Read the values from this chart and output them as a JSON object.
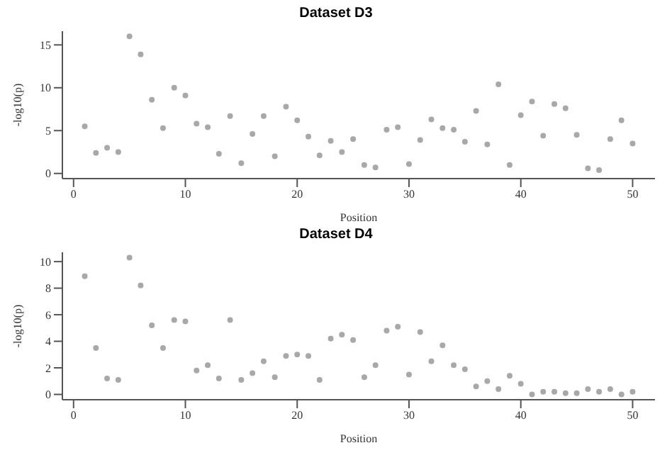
{
  "chart_data": [
    {
      "type": "scatter",
      "title": "Dataset D3",
      "xlabel": "Position",
      "ylabel": "-log10(p)",
      "marker": "circle",
      "grid": false,
      "legend": false,
      "x": [
        1,
        2,
        3,
        4,
        5,
        6,
        7,
        8,
        9,
        10,
        11,
        12,
        13,
        14,
        15,
        16,
        17,
        18,
        19,
        20,
        21,
        22,
        23,
        24,
        25,
        26,
        27,
        28,
        29,
        30,
        31,
        32,
        33,
        34,
        35,
        36,
        37,
        38,
        39,
        40,
        41,
        42,
        43,
        44,
        45,
        46,
        47,
        48,
        49,
        50
      ],
      "series": [
        {
          "color": "#a8a8a8",
          "values": [
            5.5,
            2.4,
            3.0,
            2.5,
            16.0,
            13.9,
            8.6,
            5.3,
            10.0,
            9.1,
            5.8,
            5.4,
            2.3,
            6.7,
            1.2,
            4.6,
            6.7,
            2.0,
            7.8,
            6.2,
            4.3,
            2.1,
            3.8,
            2.5,
            4.0,
            1.0,
            0.7,
            5.1,
            5.4,
            1.1,
            3.9,
            6.3,
            5.3,
            5.1,
            3.7,
            7.3,
            3.4,
            10.4,
            1.0,
            6.8,
            8.4,
            4.4,
            8.1,
            7.6,
            4.5,
            0.6,
            0.4,
            4.0,
            6.2,
            3.5
          ]
        }
      ],
      "xlim": [
        -1,
        52
      ],
      "xticks": [
        0,
        10,
        20,
        30,
        40,
        50
      ],
      "ylim": [
        -0.6,
        16.6
      ],
      "yticks": [
        0,
        5,
        10,
        15
      ]
    },
    {
      "type": "scatter",
      "title": "Dataset D4",
      "xlabel": "Position",
      "ylabel": "-log10(p)",
      "marker": "circle",
      "grid": false,
      "legend": false,
      "x": [
        1,
        2,
        3,
        4,
        5,
        6,
        7,
        8,
        9,
        10,
        11,
        12,
        13,
        14,
        15,
        16,
        17,
        18,
        19,
        20,
        21,
        22,
        23,
        24,
        25,
        26,
        27,
        28,
        29,
        30,
        31,
        32,
        33,
        34,
        35,
        36,
        37,
        38,
        39,
        40,
        41,
        42,
        43,
        44,
        45,
        46,
        47,
        48,
        49,
        50
      ],
      "series": [
        {
          "color": "#a8a8a8",
          "values": [
            8.9,
            3.5,
            1.2,
            1.1,
            10.3,
            8.2,
            5.2,
            3.5,
            5.6,
            5.5,
            1.8,
            2.2,
            1.2,
            5.6,
            1.1,
            1.6,
            2.5,
            1.3,
            2.9,
            3.0,
            2.9,
            1.1,
            4.2,
            4.5,
            4.1,
            1.3,
            2.2,
            4.8,
            5.1,
            1.5,
            4.7,
            2.5,
            3.7,
            2.2,
            1.9,
            0.6,
            1.0,
            0.4,
            1.4,
            0.8,
            0.0,
            0.2,
            0.2,
            0.1,
            0.1,
            0.4,
            0.2,
            0.4,
            0.0,
            0.2
          ]
        }
      ],
      "xlim": [
        -1,
        52
      ],
      "xticks": [
        0,
        10,
        20,
        30,
        40,
        50
      ],
      "ylim": [
        -0.4,
        10.7
      ],
      "yticks": [
        0,
        2,
        4,
        6,
        8,
        10
      ]
    }
  ]
}
